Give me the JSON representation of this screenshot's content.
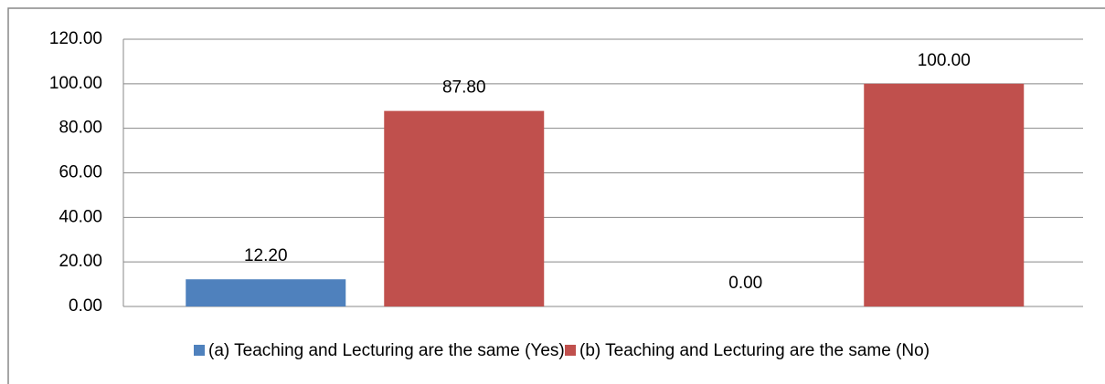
{
  "chart_data": {
    "type": "bar",
    "categories": [
      null,
      null
    ],
    "series": [
      {
        "name": "(a) Teaching and Lecturing are the same (Yes)",
        "color": "#4f81bd",
        "values": [
          12.2,
          0
        ],
        "value_labels": [
          "12.20",
          "0.00"
        ]
      },
      {
        "name": "(b) Teaching and Lecturing are the same (No)",
        "color": "#c0504d",
        "values": [
          87.8,
          100
        ],
        "value_labels": [
          "87.80",
          "100.00"
        ]
      }
    ],
    "ylim": [
      0,
      120
    ],
    "yticks": [
      {
        "value": 0,
        "label": "0.00"
      },
      {
        "value": 20,
        "label": "20.00"
      },
      {
        "value": 40,
        "label": "40.00"
      },
      {
        "value": 60,
        "label": "60.00"
      },
      {
        "value": 80,
        "label": "80.00"
      },
      {
        "value": 100,
        "label": "100.00"
      },
      {
        "value": 120,
        "label": "120.00"
      }
    ],
    "grid": true,
    "legend": "bottom"
  }
}
